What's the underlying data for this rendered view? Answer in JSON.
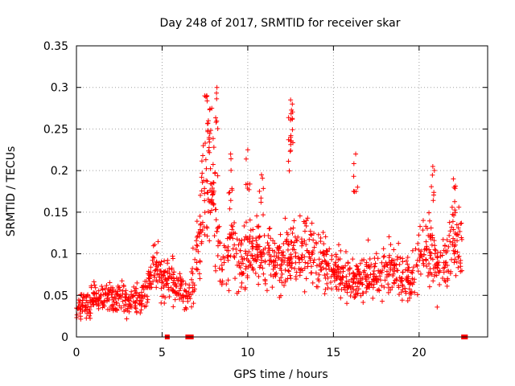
{
  "chart_data": {
    "type": "scatter",
    "title": "Day 248 of 2017, SRMTID for receiver skar",
    "xlabel": "GPS time / hours",
    "ylabel": "SRMTID / TECUs",
    "xlim": [
      0,
      24
    ],
    "ylim": [
      0,
      0.35
    ],
    "xticks": [
      0,
      5,
      10,
      15,
      20
    ],
    "yticks": [
      0,
      0.05,
      0.1,
      0.15,
      0.2,
      0.25,
      0.3,
      0.35
    ],
    "xtick_labels": [
      "0",
      "5",
      "10",
      "15",
      "20"
    ],
    "ytick_labels": [
      "0",
      "0.05",
      "0.1",
      "0.15",
      "0.2",
      "0.25",
      "0.3",
      "0.35"
    ],
    "grid": true,
    "marker": "+",
    "series": [
      {
        "name": "SRMTID",
        "color": "#ff0000",
        "trend": [
          {
            "x": 0.0,
            "y": 0.035
          },
          {
            "x": 0.5,
            "y": 0.038
          },
          {
            "x": 1.0,
            "y": 0.045
          },
          {
            "x": 1.5,
            "y": 0.05
          },
          {
            "x": 2.0,
            "y": 0.045
          },
          {
            "x": 2.5,
            "y": 0.045
          },
          {
            "x": 3.0,
            "y": 0.045
          },
          {
            "x": 3.5,
            "y": 0.045
          },
          {
            "x": 4.0,
            "y": 0.05
          },
          {
            "x": 4.5,
            "y": 0.08
          },
          {
            "x": 5.0,
            "y": 0.075
          },
          {
            "x": 5.5,
            "y": 0.07
          },
          {
            "x": 6.0,
            "y": 0.055
          },
          {
            "x": 6.5,
            "y": 0.05
          },
          {
            "x": 7.0,
            "y": 0.09
          },
          {
            "x": 7.5,
            "y": 0.17
          },
          {
            "x": 8.0,
            "y": 0.17
          },
          {
            "x": 8.5,
            "y": 0.07
          },
          {
            "x": 9.0,
            "y": 0.12
          },
          {
            "x": 9.5,
            "y": 0.09
          },
          {
            "x": 10.0,
            "y": 0.1
          },
          {
            "x": 10.5,
            "y": 0.11
          },
          {
            "x": 11.0,
            "y": 0.1
          },
          {
            "x": 11.5,
            "y": 0.095
          },
          {
            "x": 12.0,
            "y": 0.09
          },
          {
            "x": 12.5,
            "y": 0.1
          },
          {
            "x": 13.0,
            "y": 0.1
          },
          {
            "x": 13.5,
            "y": 0.11
          },
          {
            "x": 14.0,
            "y": 0.095
          },
          {
            "x": 14.5,
            "y": 0.085
          },
          {
            "x": 15.0,
            "y": 0.075
          },
          {
            "x": 15.5,
            "y": 0.075
          },
          {
            "x": 16.0,
            "y": 0.065
          },
          {
            "x": 16.5,
            "y": 0.07
          },
          {
            "x": 17.0,
            "y": 0.075
          },
          {
            "x": 17.5,
            "y": 0.075
          },
          {
            "x": 18.0,
            "y": 0.08
          },
          {
            "x": 18.5,
            "y": 0.08
          },
          {
            "x": 19.0,
            "y": 0.075
          },
          {
            "x": 19.5,
            "y": 0.07
          },
          {
            "x": 20.0,
            "y": 0.1
          },
          {
            "x": 20.5,
            "y": 0.11
          },
          {
            "x": 21.0,
            "y": 0.085
          },
          {
            "x": 21.5,
            "y": 0.085
          },
          {
            "x": 22.0,
            "y": 0.12
          },
          {
            "x": 22.5,
            "y": 0.11
          }
        ],
        "peaks": [
          {
            "x": 7.4,
            "y": 0.23
          },
          {
            "x": 7.7,
            "y": 0.26
          },
          {
            "x": 7.9,
            "y": 0.275
          },
          {
            "x": 8.2,
            "y": 0.3
          },
          {
            "x": 7.6,
            "y": 0.29
          },
          {
            "x": 9.0,
            "y": 0.22
          },
          {
            "x": 10.0,
            "y": 0.225
          },
          {
            "x": 10.8,
            "y": 0.195
          },
          {
            "x": 12.5,
            "y": 0.285
          },
          {
            "x": 12.6,
            "y": 0.28
          },
          {
            "x": 12.5,
            "y": 0.24
          },
          {
            "x": 16.3,
            "y": 0.22
          },
          {
            "x": 20.8,
            "y": 0.205
          },
          {
            "x": 22.0,
            "y": 0.19
          }
        ],
        "zero_points": [
          {
            "x": 5.3,
            "y": 0
          },
          {
            "x": 6.5,
            "y": 0
          },
          {
            "x": 6.7,
            "y": 0
          },
          {
            "x": 22.6,
            "y": 0
          },
          {
            "x": 22.7,
            "y": 0
          }
        ]
      }
    ]
  }
}
